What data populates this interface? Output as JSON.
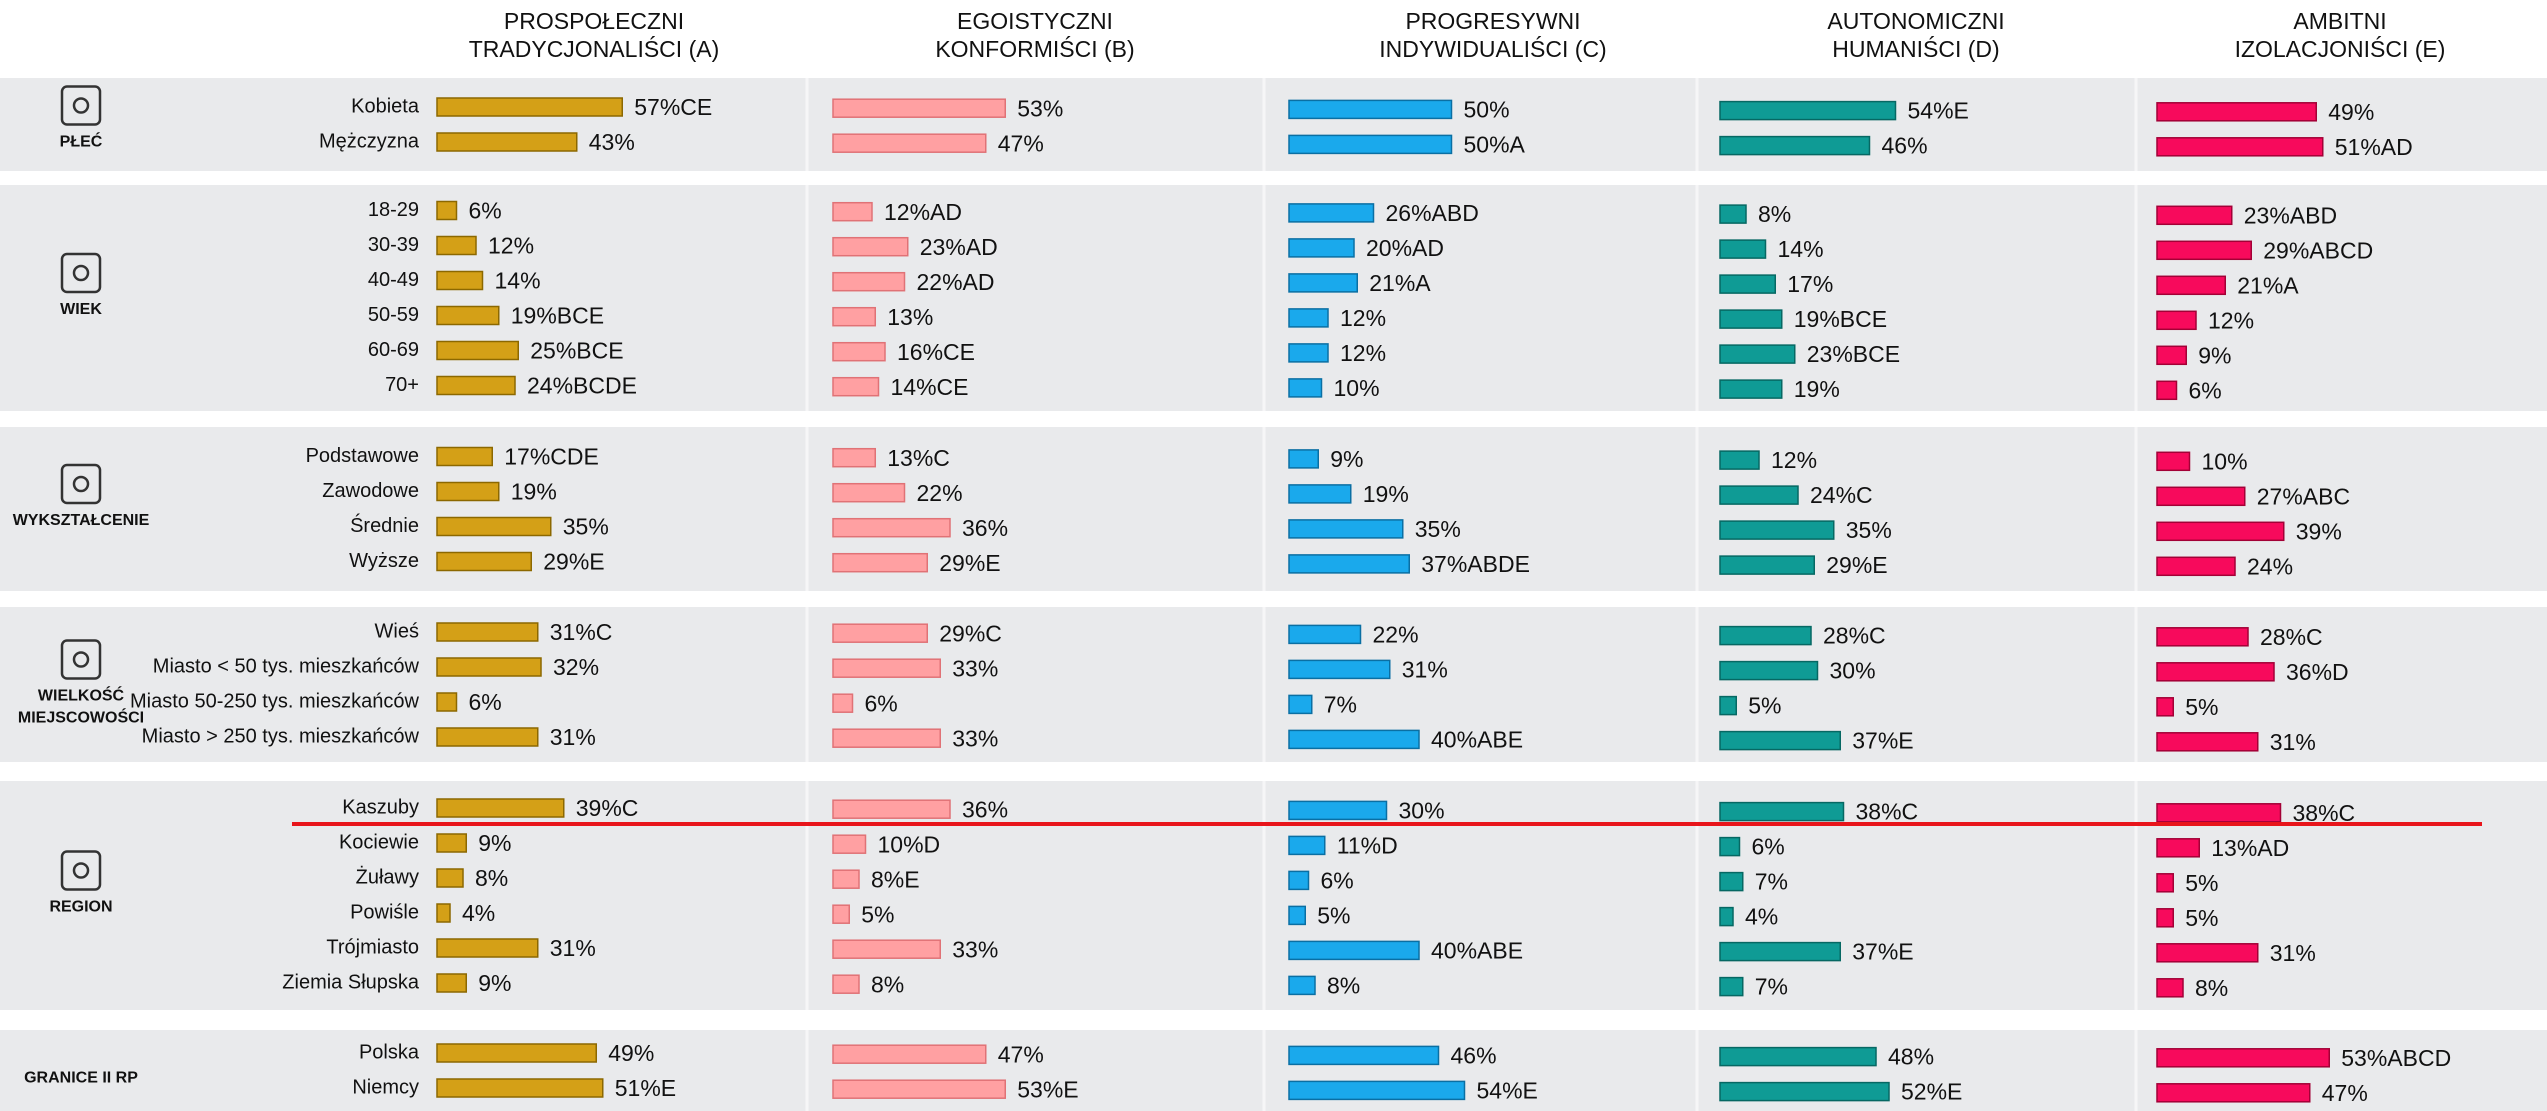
{
  "chart_data": {
    "type": "bar",
    "series": [
      {
        "name": [
          "PROSPOŁECZNI",
          "TRADYCJONALIŚCI (A)"
        ],
        "color": "#d4a017",
        "edge": "#8c6800"
      },
      {
        "name": [
          "EGOISTYCZNI",
          "KONFORMIŚCI (B)"
        ],
        "color": "#ffa0a2",
        "edge": "#e07276"
      },
      {
        "name": [
          "PROGRESYWNI",
          "INDYWIDUALIŚCI (C)"
        ],
        "color": "#1aa9ec",
        "edge": "#0a6fa3"
      },
      {
        "name": [
          "AUTONOMICZNI",
          "HUMANIŚCI (D)"
        ],
        "color": "#0f9b95",
        "edge": "#066863"
      },
      {
        "name": [
          "AMBITNI",
          "IZOLACJONIŚCI (E)"
        ],
        "color": "#f70a5c",
        "edge": "#a30036"
      }
    ],
    "groups": [
      {
        "label": [
          "PŁEĆ"
        ],
        "categories": [
          "Kobieta",
          "Mężczyzna"
        ],
        "series": [
          {
            "values": [
              57,
              43
            ],
            "value_labels": [
              "57%CE",
              "43%"
            ]
          },
          {
            "values": [
              53,
              47
            ],
            "value_labels": [
              "53%",
              "47%"
            ]
          },
          {
            "values": [
              50,
              50
            ],
            "value_labels": [
              "50%",
              "50%A"
            ]
          },
          {
            "values": [
              54,
              46
            ],
            "value_labels": [
              "54%E",
              "46%"
            ]
          },
          {
            "values": [
              49,
              51
            ],
            "value_labels": [
              "49%",
              "51%AD"
            ]
          }
        ]
      },
      {
        "label": [
          "WIEK"
        ],
        "categories": [
          "18-29",
          "30-39",
          "40-49",
          "50-59",
          "60-69",
          "70+"
        ],
        "series": [
          {
            "values": [
              6,
              12,
              14,
              19,
              25,
              24
            ],
            "value_labels": [
              "6%",
              "12%",
              "14%",
              "19%BCE",
              "25%BCE",
              "24%BCDE"
            ]
          },
          {
            "values": [
              12,
              23,
              22,
              13,
              16,
              14
            ],
            "value_labels": [
              "12%AD",
              "23%AD",
              "22%AD",
              "13%",
              "16%CE",
              "14%CE"
            ]
          },
          {
            "values": [
              26,
              20,
              21,
              12,
              12,
              10
            ],
            "value_labels": [
              "26%ABD",
              "20%AD",
              "21%A",
              "12%",
              "12%",
              "10%"
            ]
          },
          {
            "values": [
              8,
              14,
              17,
              19,
              23,
              19
            ],
            "value_labels": [
              "8%",
              "14%",
              "17%",
              "19%BCE",
              "23%BCE",
              "19%"
            ]
          },
          {
            "values": [
              23,
              29,
              21,
              12,
              9,
              6
            ],
            "value_labels": [
              "23%ABD",
              "29%ABCD",
              "21%A",
              "12%",
              "9%",
              "6%"
            ]
          }
        ]
      },
      {
        "label": [
          "WYKSZTAŁCENIE"
        ],
        "categories": [
          "Podstawowe",
          "Zawodowe",
          "Średnie",
          "Wyższe"
        ],
        "series": [
          {
            "values": [
              17,
              19,
              35,
              29
            ],
            "value_labels": [
              "17%CDE",
              "19%",
              "35%",
              "29%E"
            ]
          },
          {
            "values": [
              13,
              22,
              36,
              29
            ],
            "value_labels": [
              "13%C",
              "22%",
              "36%",
              "29%E"
            ]
          },
          {
            "values": [
              9,
              19,
              35,
              37
            ],
            "value_labels": [
              "9%",
              "19%",
              "35%",
              "37%ABDE"
            ]
          },
          {
            "values": [
              12,
              24,
              35,
              29
            ],
            "value_labels": [
              "12%",
              "24%C",
              "35%",
              "29%E"
            ]
          },
          {
            "values": [
              10,
              27,
              39,
              24
            ],
            "value_labels": [
              "10%",
              "27%ABC",
              "39%",
              "24%"
            ]
          }
        ]
      },
      {
        "label": [
          "WIELKOŚĆ",
          "MIEJSCOWOŚCI"
        ],
        "categories": [
          "Wieś",
          "Miasto < 50 tys. mieszkańców",
          "Miasto 50-250 tys. mieszkańców",
          "Miasto > 250 tys. mieszkańców"
        ],
        "series": [
          {
            "values": [
              31,
              32,
              6,
              31
            ],
            "value_labels": [
              "31%C",
              "32%",
              "6%",
              "31%"
            ]
          },
          {
            "values": [
              29,
              33,
              6,
              33
            ],
            "value_labels": [
              "29%C",
              "33%",
              "6%",
              "33%"
            ]
          },
          {
            "values": [
              22,
              31,
              7,
              40
            ],
            "value_labels": [
              "22%",
              "31%",
              "7%",
              "40%ABE"
            ]
          },
          {
            "values": [
              28,
              30,
              5,
              37
            ],
            "value_labels": [
              "28%C",
              "30%",
              "5%",
              "37%E"
            ]
          },
          {
            "values": [
              28,
              36,
              5,
              31
            ],
            "value_labels": [
              "28%C",
              "36%D",
              "5%",
              "31%"
            ]
          }
        ]
      },
      {
        "label": [
          "REGION"
        ],
        "categories": [
          "Kaszuby",
          "Kociewie",
          "Żuławy",
          "Powiśle",
          "Trójmiasto",
          "Ziemia Słupska"
        ],
        "series": [
          {
            "values": [
              39,
              9,
              8,
              4,
              31,
              9
            ],
            "value_labels": [
              "39%C",
              "9%",
              "8%",
              "4%",
              "31%",
              "9%"
            ]
          },
          {
            "values": [
              36,
              10,
              8,
              5,
              33,
              8
            ],
            "value_labels": [
              "36%",
              "10%D",
              "8%E",
              "5%",
              "33%",
              "8%"
            ]
          },
          {
            "values": [
              30,
              11,
              6,
              5,
              40,
              8
            ],
            "value_labels": [
              "30%",
              "11%D",
              "6%",
              "5%",
              "40%ABE",
              "8%"
            ]
          },
          {
            "values": [
              38,
              6,
              7,
              4,
              37,
              7
            ],
            "value_labels": [
              "38%C",
              "6%",
              "7%",
              "4%",
              "37%E",
              "7%"
            ]
          },
          {
            "values": [
              38,
              13,
              5,
              5,
              31,
              8
            ],
            "value_labels": [
              "38%C",
              "13%AD",
              "5%",
              "5%",
              "31%",
              "8%"
            ]
          }
        ]
      },
      {
        "label": [
          "GRANICE II RP"
        ],
        "categories": [
          "Polska",
          "Niemcy"
        ],
        "series": [
          {
            "values": [
              49,
              51
            ],
            "value_labels": [
              "49%",
              "51%E"
            ]
          },
          {
            "values": [
              47,
              53
            ],
            "value_labels": [
              "47%",
              "53%E"
            ]
          },
          {
            "values": [
              46,
              54
            ],
            "value_labels": [
              "46%",
              "54%E"
            ]
          },
          {
            "values": [
              48,
              52
            ],
            "value_labels": [
              "48%",
              "52%E"
            ]
          },
          {
            "values": [
              53,
              47
            ],
            "value_labels": [
              "53%ABCD",
              "47%"
            ]
          }
        ]
      }
    ]
  }
}
